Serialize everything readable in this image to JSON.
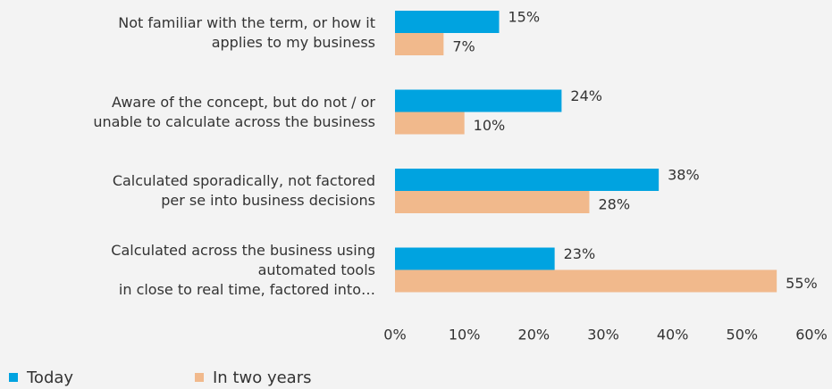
{
  "chart_data": {
    "type": "bar",
    "orientation": "horizontal",
    "categories": [
      "Not familiar with the term, or how it\napplies to my business",
      "Aware of the concept, but do not / or\nunable to calculate across the business",
      "Calculated sporadically, not factored\nper se into business decisions",
      "Calculated across the business using\nautomated tools\nin close to real time, factored into…"
    ],
    "series": [
      {
        "name": "Today",
        "color": "#00a3e0",
        "values": [
          15,
          24,
          38,
          23
        ],
        "value_labels": [
          "15%",
          "24%",
          "38%",
          "23%"
        ]
      },
      {
        "name": "In two years",
        "color": "#f1b98c",
        "values": [
          7,
          10,
          28,
          55
        ],
        "value_labels": [
          "7%",
          "10%",
          "28%",
          "55%"
        ]
      }
    ],
    "xlim": [
      0,
      60
    ],
    "xticks": [
      {
        "value": 0,
        "label": "0%"
      },
      {
        "value": 10,
        "label": "10%"
      },
      {
        "value": 20,
        "label": "20%"
      },
      {
        "value": 30,
        "label": "30%"
      },
      {
        "value": 40,
        "label": "40%"
      },
      {
        "value": 50,
        "label": "50%"
      },
      {
        "value": 60,
        "label": "60%"
      }
    ],
    "legend": "bottom-left"
  }
}
